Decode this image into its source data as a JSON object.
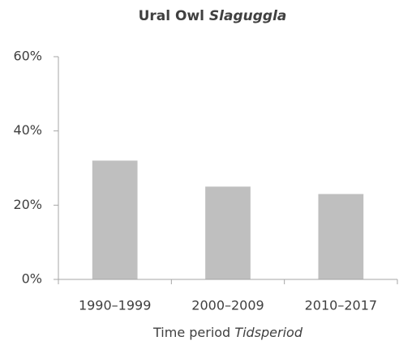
{
  "chart_data": {
    "type": "bar",
    "title": "Ural Owl",
    "title_italic": "Slaguggla",
    "xlabel": "Time period",
    "xlabel_italic": "Tidsperiod",
    "categories": [
      "1990–1999",
      "2000–2009",
      "2010–2017"
    ],
    "values": [
      32,
      25,
      23
    ],
    "color": "#bfbfbf",
    "ylim": [
      0,
      60
    ],
    "yticks": [
      {
        "value": 0,
        "label": "0%"
      },
      {
        "value": 20,
        "label": "20%"
      },
      {
        "value": 40,
        "label": "40%"
      },
      {
        "value": 60,
        "label": "60%"
      }
    ],
    "grid": false
  }
}
